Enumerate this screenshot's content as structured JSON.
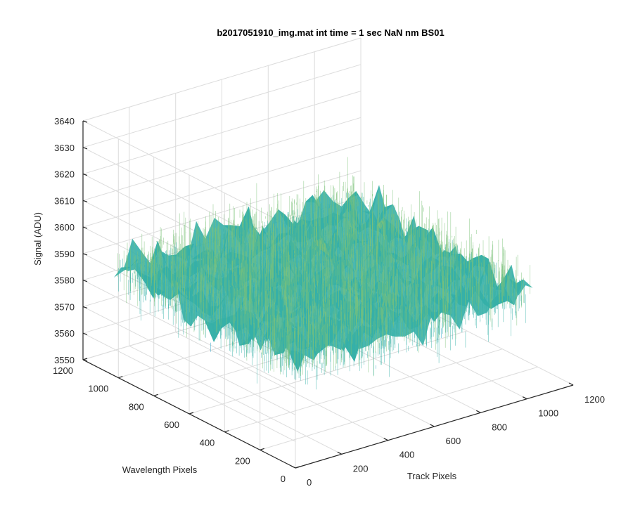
{
  "chart_data": {
    "type": "surface",
    "title": "b2017051910_img.mat int time = 1 sec  NaN nm BS01",
    "xlabel": "Track Pixels",
    "ylabel": "Wavelength Pixels",
    "zlabel": "Signal (ADU)",
    "xlim": [
      0,
      1200
    ],
    "ylim": [
      0,
      1200
    ],
    "zlim": [
      3550,
      3640
    ],
    "x_ticks": [
      "0",
      "200",
      "400",
      "600",
      "800",
      "1000",
      "1200"
    ],
    "y_ticks": [
      "0",
      "200",
      "400",
      "600",
      "800",
      "1000",
      "1200"
    ],
    "z_ticks": [
      "3550",
      "3560",
      "3570",
      "3580",
      "3590",
      "3600",
      "3610",
      "3620",
      "3630",
      "3640"
    ],
    "data_extent": {
      "x": [
        0,
        1024
      ],
      "y": [
        0,
        1024
      ]
    },
    "signal_mean": 3590,
    "signal_range": [
      3565,
      3625
    ],
    "colormap": [
      "#1fa0c8",
      "#36b0a8",
      "#7cc17a",
      "#d2c445"
    ],
    "grid": true
  }
}
